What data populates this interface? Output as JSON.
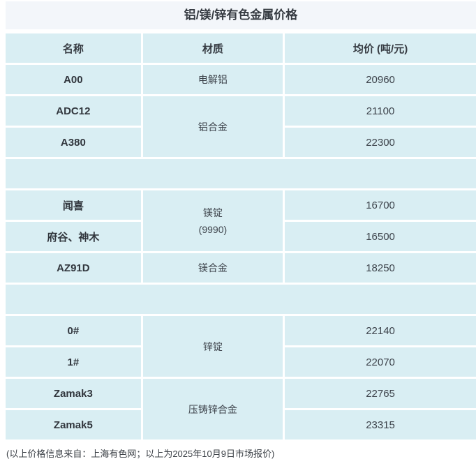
{
  "title": "铝/镁/锌有色金属价格",
  "colors": {
    "title_band_bg": "#f3f6fa",
    "cell_bg": "#d9eef3",
    "text": "#363b42"
  },
  "table": {
    "headers": {
      "name": "名称",
      "material": "材质",
      "price": "均价 (吨/元)"
    },
    "rows": [
      {
        "name": "A00",
        "material": "电解铝",
        "price": "20960"
      },
      {
        "name": "ADC12",
        "material": "铝合金",
        "price": "21100"
      },
      {
        "name": "A380",
        "price": "22300"
      },
      {
        "name": "闻喜",
        "material_line1": "镁锭",
        "material_line2": "(9990)",
        "price": "16700"
      },
      {
        "name": "府谷、神木",
        "price": "16500"
      },
      {
        "name": "AZ91D",
        "material": "镁合金",
        "price": "18250"
      },
      {
        "name": "0#",
        "material": "锌锭",
        "price": "22140"
      },
      {
        "name": "1#",
        "price": "22070"
      },
      {
        "name": "Zamak3",
        "material": "压铸锌合金",
        "price": "22765"
      },
      {
        "name": "Zamak5",
        "price": "23315"
      }
    ]
  },
  "footer": "(以上价格信息来自：上海有色网；以上为2025年10月9日市场报价)"
}
